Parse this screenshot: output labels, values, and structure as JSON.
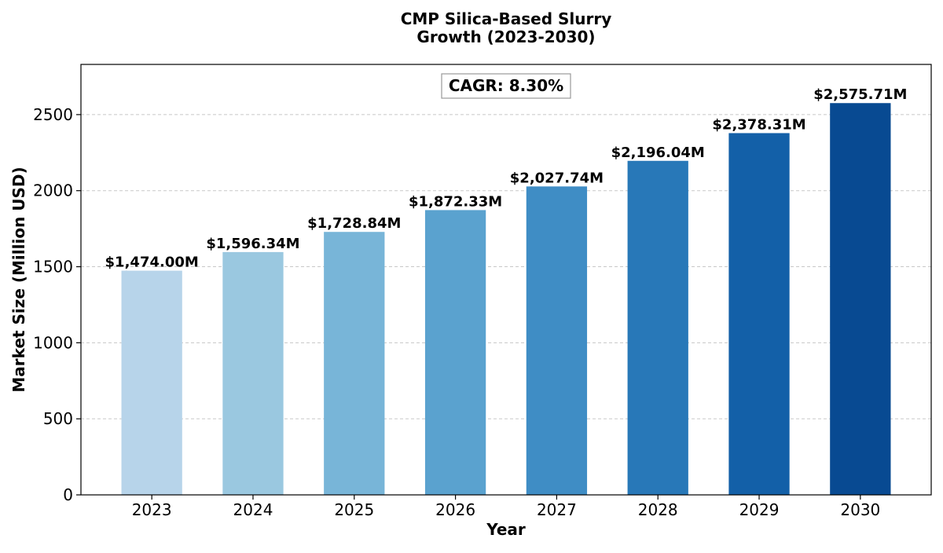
{
  "chart_data": {
    "type": "bar",
    "title": [
      "CMP Silica-Based Slurry",
      "Growth (2023-2030)"
    ],
    "xlabel": "Year",
    "ylabel": "Market Size (Million USD)",
    "categories": [
      "2023",
      "2024",
      "2025",
      "2026",
      "2027",
      "2028",
      "2029",
      "2030"
    ],
    "values": [
      1474.0,
      1596.34,
      1728.84,
      1872.33,
      2027.74,
      2196.04,
      2378.31,
      2575.71
    ],
    "data_labels": [
      "$1,474.00M",
      "$1,596.34M",
      "$1,728.84M",
      "$1,872.33M",
      "$2,027.74M",
      "$2,196.04M",
      "$2,378.31M",
      "$2,575.71M"
    ],
    "bar_colors": [
      "#b7d4ea",
      "#9ac8e0",
      "#78b5d8",
      "#5aa2cf",
      "#3f8dc5",
      "#2878b8",
      "#1360a8",
      "#084a92"
    ],
    "ylim": [
      0,
      2830
    ],
    "yticks": [
      0,
      500,
      1000,
      1500,
      2000,
      2500
    ],
    "grid": "y-dashed",
    "annotation": "CAGR: 8.30%"
  }
}
